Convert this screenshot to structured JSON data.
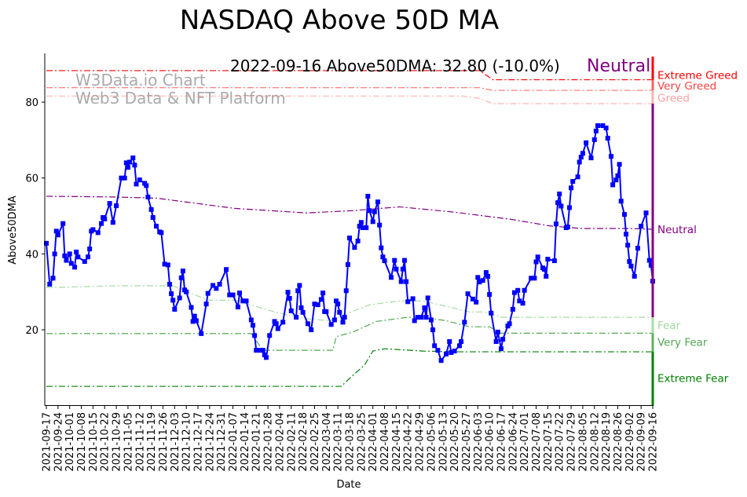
{
  "chart_data": {
    "type": "line",
    "title": "NASDAQ Above 50D MA",
    "xlabel": "Date",
    "ylabel": "Above50DMA",
    "x_unit": "days since 2021-09-17",
    "xlim": [
      0,
      364
    ],
    "ylim": [
      0,
      92
    ],
    "yticks": [
      20,
      40,
      60,
      80
    ],
    "grid": false,
    "annotation": "2022-09-16 Above50DMA: 32.80 (-10.0%)",
    "status_label": "Neutral",
    "watermark": [
      "W3Data.io Chart",
      "Web3 Data & NFT Platform"
    ],
    "xtick_labels": [
      "2021-09-17",
      "2021-09-24",
      "2021-10-01",
      "2021-10-08",
      "2021-10-15",
      "2021-10-22",
      "2021-10-29",
      "2021-11-05",
      "2021-11-12",
      "2021-11-19",
      "2021-11-26",
      "2021-12-03",
      "2021-12-10",
      "2021-12-17",
      "2021-12-24",
      "2021-12-31",
      "2022-01-07",
      "2022-01-14",
      "2022-01-21",
      "2022-01-28",
      "2022-02-04",
      "2022-02-11",
      "2022-02-18",
      "2022-02-25",
      "2022-03-04",
      "2022-03-11",
      "2022-03-18",
      "2022-03-25",
      "2022-04-01",
      "2022-04-08",
      "2022-04-15",
      "2022-04-22",
      "2022-04-29",
      "2022-05-06",
      "2022-05-13",
      "2022-05-20",
      "2022-05-27",
      "2022-06-03",
      "2022-06-10",
      "2022-06-17",
      "2022-06-24",
      "2022-07-01",
      "2022-07-08",
      "2022-07-15",
      "2022-07-22",
      "2022-07-29",
      "2022-08-05",
      "2022-08-12",
      "2022-08-19",
      "2022-08-26",
      "2022-09-02",
      "2022-09-09",
      "2022-09-16"
    ],
    "series": [
      {
        "name": "Above50DMA",
        "color": "#0000ff",
        "x": [
          0,
          2,
          4,
          5,
          6,
          7,
          10,
          11,
          12,
          14,
          15,
          17,
          18,
          19,
          23,
          25,
          26,
          27,
          28,
          31,
          33,
          34,
          35,
          38,
          40,
          42,
          45,
          47,
          48,
          49,
          50,
          52,
          53,
          54,
          56,
          59,
          60,
          61,
          63,
          64,
          66,
          68,
          69,
          71,
          73,
          74,
          75,
          76,
          77,
          80,
          81,
          82,
          83,
          84,
          87,
          88,
          89,
          90,
          93,
          96,
          97,
          100,
          102,
          104,
          108,
          110,
          112,
          115,
          116,
          118,
          120,
          123,
          124,
          125,
          126,
          128,
          130,
          131,
          132,
          134,
          137,
          138,
          139,
          142,
          145,
          146,
          147,
          150,
          151,
          152,
          153,
          154,
          157,
          159,
          161,
          163,
          165,
          166,
          167,
          168,
          171,
          173,
          174,
          175,
          176,
          178,
          179,
          180,
          181,
          182,
          185,
          187,
          188,
          189,
          190,
          192,
          193,
          194,
          196,
          197,
          199,
          200,
          201,
          202,
          203,
          207,
          209,
          210,
          213,
          214,
          215,
          216,
          217,
          220,
          221,
          223,
          225,
          227,
          228,
          229,
          231,
          232,
          233,
          235,
          237,
          240,
          242,
          243,
          245,
          248,
          249,
          251,
          253,
          256,
          258,
          259,
          260,
          262,
          264,
          265,
          266,
          267,
          270,
          271,
          273,
          274,
          277,
          278,
          280,
          281,
          283,
          284,
          286,
          287,
          291,
          293,
          294,
          295,
          298,
          299,
          300,
          301,
          305,
          306,
          307,
          308,
          309,
          312,
          313,
          314,
          315,
          316,
          319,
          320,
          321,
          322,
          324,
          327,
          329,
          330,
          331,
          334,
          336,
          337,
          339,
          340,
          342,
          343,
          344,
          345,
          347,
          348,
          349,
          350,
          351,
          353,
          355,
          357,
          360,
          362,
          363,
          364
        ],
        "y": [
          42.8,
          32,
          33.6,
          40,
          46,
          45,
          48,
          39.5,
          38.3,
          40,
          37.5,
          36.5,
          40.5,
          39.2,
          38,
          39.2,
          41.3,
          46,
          46.4,
          45.6,
          48,
          49.6,
          49.2,
          53.3,
          48.3,
          52.7,
          60,
          60,
          64,
          62.8,
          64.2,
          65.3,
          63.4,
          58.4,
          59.5,
          58.6,
          58,
          55,
          51.7,
          49.6,
          47.3,
          45.8,
          45.6,
          37.3,
          37.1,
          32,
          29.5,
          27.8,
          25.4,
          28.4,
          33.7,
          35.5,
          30.5,
          30,
          25.9,
          22.2,
          23.6,
          22.4,
          19,
          26.8,
          29.6,
          31.7,
          30.9,
          32,
          35.9,
          29.2,
          29.2,
          26,
          29.7,
          27.6,
          27.6,
          22.6,
          21.2,
          18.5,
          14.6,
          14.6,
          14.6,
          13.4,
          12.7,
          18.5,
          22.2,
          21.6,
          20.3,
          22,
          29.9,
          28.3,
          25,
          23.3,
          30.3,
          31.7,
          25.8,
          24.6,
          21.6,
          20,
          26.8,
          26.6,
          28,
          29.7,
          24.8,
          24.8,
          21.4,
          22.6,
          27.6,
          26.8,
          24.6,
          22,
          23.3,
          30.3,
          37.2,
          44.2,
          41.7,
          43.4,
          47.3,
          48.3,
          46.9,
          46.9,
          55.2,
          51.4,
          48.5,
          51.1,
          53.7,
          47.6,
          41.6,
          39.2,
          38.2,
          33.8,
          38.3,
          36,
          32.7,
          36,
          38.3,
          32.7,
          27.4,
          28.2,
          22.4,
          23.3,
          23.3,
          25.8,
          23.3,
          28.4,
          22.6,
          20,
          15.8,
          14.6,
          11.9,
          13.6,
          16.9,
          14,
          14.4,
          15.8,
          16.9,
          22,
          29.5,
          28.1,
          27.3,
          33.8,
          32.6,
          33,
          35.1,
          34.1,
          29.3,
          24.4,
          16.9,
          19.4,
          15,
          17.5,
          21,
          21.6,
          25.4,
          29.8,
          30.4,
          27.6,
          27,
          30.4,
          33.6,
          33.6,
          37.9,
          39.2,
          36.3,
          35.9,
          34.1,
          38.6,
          38.2,
          47.9,
          53.5,
          55.8,
          52.6,
          46.9,
          47.1,
          52.2,
          57.4,
          59.1,
          60.3,
          64.2,
          65.5,
          66.5,
          69.3,
          65.3,
          70.1,
          72.4,
          73.8,
          73.8,
          73.2,
          70.5,
          65.7,
          58.2,
          59.5,
          60.6,
          63.6,
          53.9,
          50.4,
          45.2,
          42.3,
          38,
          36.8,
          34.1,
          41.5,
          47.3,
          50.8,
          38.3,
          37,
          32.8
        ]
      }
    ],
    "reference_lines": [
      {
        "name": "Extreme Greed",
        "color": "#ff0000",
        "opacity": 1,
        "x": [
          0,
          260,
          268,
          364
        ],
        "y": [
          88.3,
          88.3,
          85.9,
          85.9
        ]
      },
      {
        "name": "Very Greed",
        "color": "#ff4040",
        "opacity": 0.75,
        "x": [
          0,
          260,
          268,
          364
        ],
        "y": [
          83.8,
          83.8,
          83.1,
          83.1
        ]
      },
      {
        "name": "Greed",
        "color": "#ff8080",
        "opacity": 0.6,
        "x": [
          0,
          250,
          260,
          268,
          364
        ],
        "y": [
          81.6,
          81.6,
          81.0,
          79.6,
          79.6
        ]
      },
      {
        "name": "Neutral",
        "color": "#800080",
        "opacity": 1,
        "x": [
          0,
          40,
          66,
          113,
          156,
          184,
          212,
          245,
          279,
          302,
          321,
          349,
          364
        ],
        "y": [
          55.2,
          55.0,
          54.7,
          52,
          50.8,
          51.4,
          52.4,
          51,
          49.1,
          47.4,
          46.7,
          46.7,
          46.5
        ]
      },
      {
        "name": "Fear",
        "color": "#7fcc7f",
        "opacity": 0.7,
        "x": [
          0,
          43,
          76,
          97,
          113,
          137,
          156,
          170,
          184,
          194,
          212,
          226,
          240,
          254,
          263,
          273,
          364
        ],
        "y": [
          31.1,
          31.6,
          31.6,
          27.8,
          27.8,
          24.7,
          22.9,
          22.4,
          24.9,
          26.6,
          27.6,
          27.6,
          26.2,
          24.7,
          24.7,
          23.3,
          23.3
        ]
      },
      {
        "name": "Very Fear",
        "color": "#3fa03f",
        "opacity": 0.9,
        "x": [
          0,
          123,
          130,
          172,
          174,
          184,
          198,
          217,
          226,
          240,
          254,
          266,
          273,
          364
        ],
        "y": [
          19,
          19,
          14.6,
          14.6,
          18.2,
          19.4,
          22.2,
          23.3,
          23.3,
          22.4,
          20.8,
          20.8,
          19.1,
          19.1
        ]
      },
      {
        "name": "Extreme Fear",
        "color": "#008000",
        "opacity": 1,
        "x": [
          0,
          177,
          182,
          191,
          196,
          203,
          226,
          245,
          364
        ],
        "y": [
          5.1,
          5.1,
          7.2,
          10.7,
          14.4,
          15,
          14.4,
          14.2,
          14.2
        ]
      }
    ],
    "zone_bar": [
      {
        "label": "Extreme Greed",
        "color": "#ff0000",
        "from": 85.9,
        "to": 92
      },
      {
        "label": "Very Greed",
        "color": "#ff6060",
        "from": 83.1,
        "to": 85.9
      },
      {
        "label": "Greed",
        "color": "#ffb0b0",
        "from": 79.6,
        "to": 83.1
      },
      {
        "label": "Neutral",
        "color": "#800080",
        "from": 23.3,
        "to": 79.6
      },
      {
        "label": "Fear",
        "color": "#a8dba8",
        "from": 19.1,
        "to": 23.3
      },
      {
        "label": "Very Fear",
        "color": "#60b060",
        "from": 14.2,
        "to": 19.1
      },
      {
        "label": "Extreme Fear",
        "color": "#008000",
        "from": 0,
        "to": 14.2
      }
    ],
    "zone_labels": [
      {
        "text": "Extreme Greed",
        "color": "#ff0000",
        "value": 87.2
      },
      {
        "text": "Very Greed",
        "color": "#ff4040",
        "value": 84.4
      },
      {
        "text": "Greed",
        "color": "#ffa0a0",
        "value": 81.2
      },
      {
        "text": "Neutral",
        "color": "#800080",
        "value": 46.5
      },
      {
        "text": "Fear",
        "color": "#a0d8a0",
        "value": 21.3
      },
      {
        "text": "Very Fear",
        "color": "#50a850",
        "value": 16.8
      },
      {
        "text": "Extreme Fear",
        "color": "#008000",
        "value": 7.3
      }
    ]
  }
}
